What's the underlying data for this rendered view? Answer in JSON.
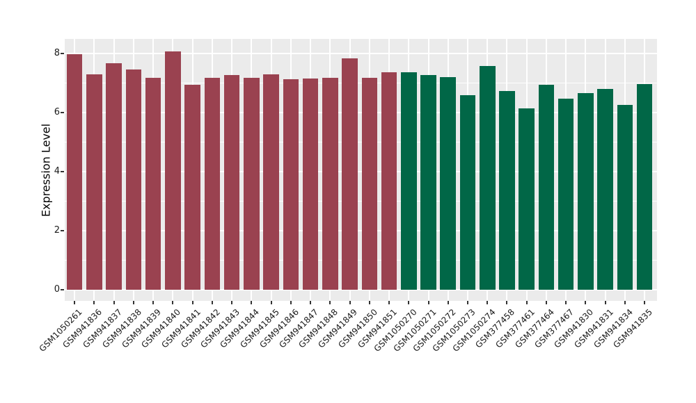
{
  "figure": {
    "background_color": "#FFFFFF",
    "panel_background_color": "#EBEBEB",
    "gridline_color": "#FFFFFF",
    "axis_text_color": "#1A1A1A",
    "axis_title_color": "#000000",
    "tick_mark_color": "#333333"
  },
  "chart_data": {
    "type": "bar",
    "title": "",
    "xlabel": "",
    "ylabel": "Expression Level",
    "ylim": [
      0,
      8.5
    ],
    "yticks": [
      0,
      2,
      4,
      6,
      8
    ],
    "yticks_minor": [
      1,
      3,
      5,
      7
    ],
    "grid": "white major and minor gridlines on gray panel",
    "legend_position": "none",
    "x_tick_rotation_degrees": 45,
    "group_colors": {
      "red": "#9A4250",
      "green": "#016747"
    },
    "bars": [
      {
        "label": "GSM1050261",
        "value": 7.98,
        "group": "red"
      },
      {
        "label": "GSM941836",
        "value": 7.3,
        "group": "red"
      },
      {
        "label": "GSM941837",
        "value": 7.68,
        "group": "red"
      },
      {
        "label": "GSM941838",
        "value": 7.47,
        "group": "red"
      },
      {
        "label": "GSM941839",
        "value": 7.18,
        "group": "red"
      },
      {
        "label": "GSM941840",
        "value": 8.07,
        "group": "red"
      },
      {
        "label": "GSM941841",
        "value": 6.95,
        "group": "red"
      },
      {
        "label": "GSM941842",
        "value": 7.17,
        "group": "red"
      },
      {
        "label": "GSM941843",
        "value": 7.28,
        "group": "red"
      },
      {
        "label": "GSM941844",
        "value": 7.17,
        "group": "red"
      },
      {
        "label": "GSM941845",
        "value": 7.3,
        "group": "red"
      },
      {
        "label": "GSM941846",
        "value": 7.12,
        "group": "red"
      },
      {
        "label": "GSM941847",
        "value": 7.15,
        "group": "red"
      },
      {
        "label": "GSM941848",
        "value": 7.17,
        "group": "red"
      },
      {
        "label": "GSM941849",
        "value": 7.83,
        "group": "red"
      },
      {
        "label": "GSM941850",
        "value": 7.17,
        "group": "red"
      },
      {
        "label": "GSM941851",
        "value": 7.36,
        "group": "red"
      },
      {
        "label": "GSM1050270",
        "value": 7.36,
        "group": "green"
      },
      {
        "label": "GSM1050271",
        "value": 7.28,
        "group": "green"
      },
      {
        "label": "GSM1050272",
        "value": 7.2,
        "group": "green"
      },
      {
        "label": "GSM1050273",
        "value": 6.6,
        "group": "green"
      },
      {
        "label": "GSM1050274",
        "value": 7.57,
        "group": "green"
      },
      {
        "label": "GSM377458",
        "value": 6.73,
        "group": "green"
      },
      {
        "label": "GSM377461",
        "value": 6.13,
        "group": "green"
      },
      {
        "label": "GSM377464",
        "value": 6.93,
        "group": "green"
      },
      {
        "label": "GSM377467",
        "value": 6.46,
        "group": "green"
      },
      {
        "label": "GSM941830",
        "value": 6.66,
        "group": "green"
      },
      {
        "label": "GSM941831",
        "value": 6.81,
        "group": "green"
      },
      {
        "label": "GSM941834",
        "value": 6.26,
        "group": "green"
      },
      {
        "label": "GSM941835",
        "value": 6.96,
        "group": "green"
      }
    ]
  }
}
